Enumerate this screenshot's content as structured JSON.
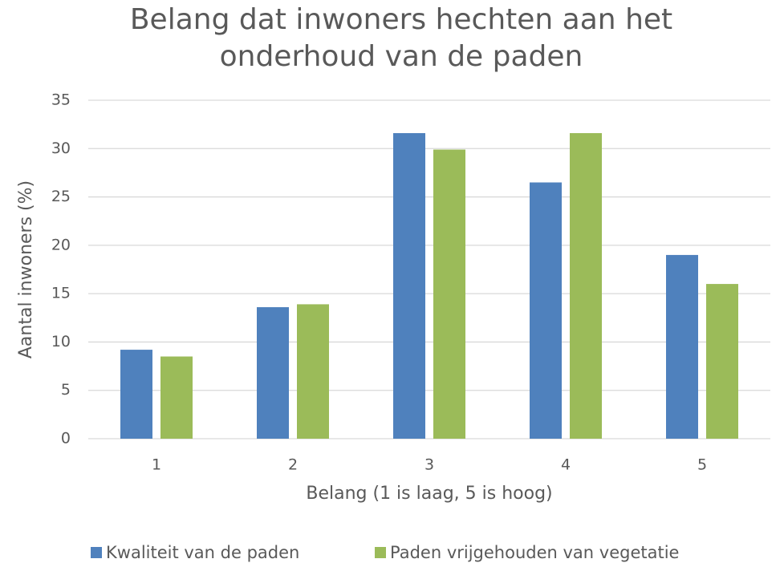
{
  "chart_data": {
    "type": "bar",
    "title": "Belang dat inwoners hechten aan het onderhoud van de paden",
    "x_label": "Belang (1 is laag, 5 is hoog)",
    "y_label": "Aantal inwoners (%)",
    "categories": [
      "1",
      "2",
      "3",
      "4",
      "5"
    ],
    "series": [
      {
        "name": "Kwaliteit van de paden",
        "color": "#4f81bd",
        "values": [
          9.2,
          13.6,
          31.6,
          26.5,
          19.0
        ]
      },
      {
        "name": "Paden vrijgehouden van vegetatie",
        "color": "#9bbb59",
        "values": [
          8.5,
          13.9,
          29.9,
          31.6,
          16.0
        ]
      }
    ],
    "ylim": [
      0,
      35
    ],
    "yticks": [
      0,
      5,
      10,
      15,
      20,
      25,
      30,
      35
    ],
    "grid": true,
    "legend": "bottom"
  }
}
